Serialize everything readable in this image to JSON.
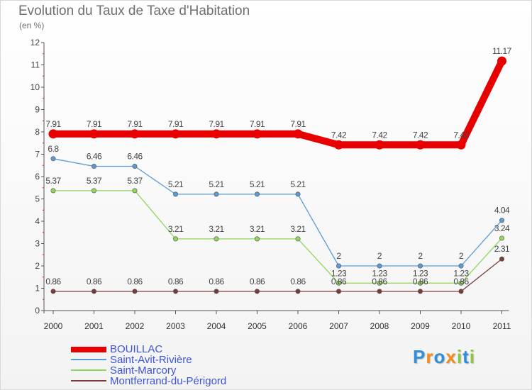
{
  "chart_data": {
    "type": "line",
    "title": "Evolution du Taux de Taxe d'Habitation",
    "ylabel": "(en %)",
    "xlabel": "",
    "x": [
      "2000",
      "2001",
      "2002",
      "2003",
      "2004",
      "2005",
      "2006",
      "2007",
      "2008",
      "2009",
      "2010",
      "2011"
    ],
    "yticks": [
      "0",
      "1",
      "2",
      "3",
      "4",
      "5",
      "6",
      "7",
      "8",
      "9",
      "10",
      "11",
      "12"
    ],
    "ylim": [
      0,
      12
    ],
    "grid": false,
    "legend_position": "bottom-left",
    "series": [
      {
        "name": "BOUILLAC",
        "color": "#e80000",
        "values": [
          7.91,
          7.91,
          7.91,
          7.91,
          7.91,
          7.91,
          7.91,
          7.42,
          7.42,
          7.42,
          7.42,
          11.17
        ],
        "labels": [
          "7.91",
          "7.91",
          "7.91",
          "7.91",
          "7.91",
          "7.91",
          "7.91",
          "7.42",
          "7.42",
          "7.42",
          "7.42",
          "11.17"
        ]
      },
      {
        "name": "Saint-Avit-Rivière",
        "color": "#5b9bd5",
        "values": [
          6.8,
          6.46,
          6.46,
          5.21,
          5.21,
          5.21,
          5.21,
          2,
          2,
          2,
          2,
          4.04
        ],
        "labels": [
          "6.8",
          "6.46",
          "6.46",
          "5.21",
          "5.21",
          "5.21",
          "5.21",
          "2",
          "2",
          "2",
          "2",
          "4.04"
        ]
      },
      {
        "name": "Saint-Marcory",
        "color": "#8fd65a",
        "values": [
          5.37,
          5.37,
          5.37,
          3.21,
          3.21,
          3.21,
          3.21,
          1.23,
          1.23,
          1.23,
          1.23,
          3.24
        ],
        "labels": [
          "5.37",
          "5.37",
          "5.37",
          "3.21",
          "3.21",
          "3.21",
          "3.21",
          "1.23",
          "1.23",
          "1.23",
          "1.23",
          "3.24"
        ]
      },
      {
        "name": "Montferrand-du-Périgord",
        "color": "#7a3b3b",
        "values": [
          0.86,
          0.86,
          0.86,
          0.86,
          0.86,
          0.86,
          0.86,
          0.86,
          0.86,
          0.86,
          0.86,
          2.31
        ],
        "labels": [
          "0.86",
          "0.86",
          "0.86",
          "0.86",
          "0.86",
          "0.86",
          "0.86",
          "0.86",
          "0.86",
          "0.86",
          "0.86",
          "2.31"
        ]
      }
    ]
  },
  "logo": {
    "letters": [
      {
        "char": "P",
        "color": "#2f8fd8"
      },
      {
        "char": "r",
        "color": "#f28c1e"
      },
      {
        "char": "o",
        "color": "#2f8fd8"
      },
      {
        "char": "x",
        "color": "#f28c1e"
      },
      {
        "char": "i",
        "color": "#8cc63e"
      },
      {
        "char": "t",
        "color": "#2f8fd8"
      },
      {
        "char": "i",
        "color": "#8cc63e"
      }
    ]
  }
}
